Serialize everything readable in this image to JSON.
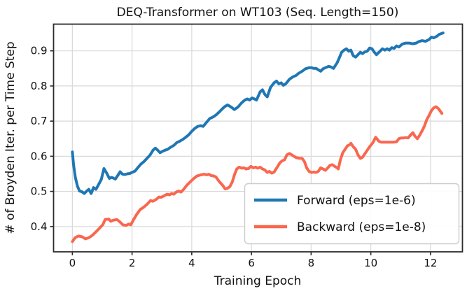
{
  "figure": {
    "background": "#ffffff",
    "frame_color": "#2b2b2b",
    "grid_color": "#d9d9d9",
    "text_color": "#111111",
    "legend_border_color": "#cccccc"
  },
  "chart_data": {
    "type": "line",
    "title": "DEQ-Transformer on WT103 (Seq. Length=150)",
    "xlabel": "Training Epoch",
    "ylabel": "# of Broyden Iter. per Time Step",
    "xlim": [
      -0.63,
      13.07
    ],
    "ylim": [
      0.328,
      0.976
    ],
    "x_ticks": [
      0,
      2,
      4,
      6,
      8,
      10,
      12
    ],
    "y_ticks": [
      0.4,
      0.5,
      0.6,
      0.7,
      0.8,
      0.9
    ],
    "grid": true,
    "legend_position": "lower right",
    "series": [
      {
        "name": "Forward (eps=1e-6)",
        "color": "#1f77b4",
        "x": [
          0,
          0.04,
          0.1,
          0.17,
          0.24,
          0.32,
          0.4,
          0.48,
          0.55,
          0.63,
          0.71,
          0.79,
          0.87,
          0.97,
          1.06,
          1.15,
          1.24,
          1.32,
          1.44,
          1.52,
          1.6,
          1.68,
          1.76,
          1.84,
          1.92,
          2.0,
          2.1,
          2.2,
          2.3,
          2.4,
          2.5,
          2.6,
          2.7,
          2.78,
          2.86,
          2.94,
          3.02,
          3.1,
          3.2,
          3.3,
          3.4,
          3.5,
          3.6,
          3.7,
          3.8,
          3.9,
          4.0,
          4.1,
          4.2,
          4.3,
          4.38,
          4.5,
          4.6,
          4.72,
          4.82,
          4.92,
          5.0,
          5.1,
          5.2,
          5.32,
          5.43,
          5.55,
          5.67,
          5.78,
          5.86,
          5.94,
          6.02,
          6.1,
          6.17,
          6.29,
          6.37,
          6.45,
          6.53,
          6.64,
          6.76,
          6.84,
          6.92,
          7.0,
          7.07,
          7.15,
          7.27,
          7.39,
          7.5,
          7.58,
          7.7,
          7.81,
          7.93,
          8.01,
          8.09,
          8.17,
          8.24,
          8.32,
          8.4,
          8.48,
          8.59,
          8.67,
          8.75,
          8.87,
          8.94,
          9.02,
          9.1,
          9.18,
          9.26,
          9.33,
          9.41,
          9.49,
          9.57,
          9.65,
          9.72,
          9.8,
          9.88,
          9.96,
          10.04,
          10.12,
          10.19,
          10.31,
          10.39,
          10.47,
          10.55,
          10.62,
          10.7,
          10.78,
          10.86,
          10.94,
          11.05,
          11.17,
          11.29,
          11.4,
          11.52,
          11.6,
          11.72,
          11.83,
          11.95,
          12.03,
          12.11,
          12.22,
          12.29,
          12.42
        ],
        "y": [
          0.612,
          0.575,
          0.54,
          0.515,
          0.501,
          0.499,
          0.494,
          0.501,
          0.506,
          0.494,
          0.511,
          0.506,
          0.518,
          0.534,
          0.565,
          0.552,
          0.537,
          0.54,
          0.535,
          0.545,
          0.556,
          0.549,
          0.548,
          0.55,
          0.551,
          0.554,
          0.558,
          0.568,
          0.578,
          0.585,
          0.594,
          0.603,
          0.617,
          0.623,
          0.617,
          0.61,
          0.614,
          0.617,
          0.62,
          0.626,
          0.631,
          0.639,
          0.643,
          0.648,
          0.654,
          0.661,
          0.671,
          0.679,
          0.685,
          0.687,
          0.685,
          0.697,
          0.707,
          0.712,
          0.718,
          0.726,
          0.733,
          0.741,
          0.746,
          0.74,
          0.733,
          0.74,
          0.752,
          0.76,
          0.763,
          0.76,
          0.766,
          0.763,
          0.76,
          0.783,
          0.789,
          0.776,
          0.769,
          0.796,
          0.809,
          0.814,
          0.806,
          0.809,
          0.802,
          0.806,
          0.819,
          0.826,
          0.83,
          0.836,
          0.842,
          0.849,
          0.852,
          0.852,
          0.85,
          0.85,
          0.846,
          0.842,
          0.849,
          0.852,
          0.856,
          0.854,
          0.85,
          0.866,
          0.879,
          0.896,
          0.902,
          0.906,
          0.899,
          0.902,
          0.886,
          0.882,
          0.889,
          0.896,
          0.892,
          0.897,
          0.899,
          0.908,
          0.906,
          0.896,
          0.889,
          0.899,
          0.906,
          0.902,
          0.906,
          0.902,
          0.909,
          0.907,
          0.914,
          0.911,
          0.919,
          0.922,
          0.922,
          0.92,
          0.922,
          0.926,
          0.929,
          0.927,
          0.932,
          0.939,
          0.937,
          0.942,
          0.947,
          0.951
        ]
      },
      {
        "name": "Backward (eps=1e-8)",
        "color": "#f9674e",
        "x": [
          0,
          0.09,
          0.2,
          0.32,
          0.44,
          0.55,
          0.67,
          0.79,
          0.91,
          1.02,
          1.1,
          1.22,
          1.29,
          1.37,
          1.49,
          1.57,
          1.69,
          1.8,
          1.88,
          1.96,
          2.04,
          2.15,
          2.27,
          2.39,
          2.51,
          2.62,
          2.7,
          2.82,
          2.9,
          2.97,
          3.09,
          3.17,
          3.25,
          3.33,
          3.4,
          3.48,
          3.56,
          3.64,
          3.72,
          3.83,
          3.95,
          4.07,
          4.18,
          4.3,
          4.42,
          4.5,
          4.57,
          4.65,
          4.73,
          4.81,
          4.92,
          5.04,
          5.12,
          5.2,
          5.28,
          5.36,
          5.43,
          5.51,
          5.59,
          5.67,
          5.75,
          5.82,
          5.9,
          5.98,
          6.06,
          6.14,
          6.21,
          6.29,
          6.37,
          6.45,
          6.53,
          6.6,
          6.68,
          6.76,
          6.88,
          6.95,
          7.03,
          7.11,
          7.19,
          7.27,
          7.35,
          7.5,
          7.62,
          7.7,
          7.78,
          7.85,
          7.93,
          8.01,
          8.09,
          8.17,
          8.24,
          8.32,
          8.4,
          8.48,
          8.56,
          8.63,
          8.71,
          8.79,
          8.87,
          8.91,
          8.98,
          9.06,
          9.14,
          9.22,
          9.3,
          9.33,
          9.41,
          9.49,
          9.57,
          9.65,
          9.72,
          9.8,
          9.88,
          9.96,
          10.08,
          10.16,
          10.27,
          10.35,
          10.43,
          10.58,
          10.74,
          10.86,
          10.94,
          11.01,
          11.09,
          11.17,
          11.25,
          11.33,
          11.41,
          11.48,
          11.56,
          11.64,
          11.72,
          11.8,
          11.87,
          11.95,
          12.03,
          12.11,
          12.18,
          12.26,
          12.38
        ],
        "y": [
          0.357,
          0.368,
          0.373,
          0.371,
          0.365,
          0.368,
          0.375,
          0.385,
          0.395,
          0.405,
          0.42,
          0.421,
          0.415,
          0.418,
          0.42,
          0.415,
          0.405,
          0.403,
          0.407,
          0.405,
          0.418,
          0.434,
          0.448,
          0.455,
          0.464,
          0.474,
          0.472,
          0.478,
          0.484,
          0.483,
          0.488,
          0.492,
          0.49,
          0.494,
          0.492,
          0.498,
          0.501,
          0.498,
          0.505,
          0.517,
          0.527,
          0.537,
          0.544,
          0.547,
          0.549,
          0.547,
          0.549,
          0.545,
          0.544,
          0.541,
          0.528,
          0.517,
          0.507,
          0.509,
          0.514,
          0.527,
          0.547,
          0.564,
          0.569,
          0.566,
          0.567,
          0.564,
          0.565,
          0.571,
          0.567,
          0.569,
          0.566,
          0.569,
          0.564,
          0.561,
          0.554,
          0.557,
          0.552,
          0.555,
          0.571,
          0.581,
          0.587,
          0.59,
          0.604,
          0.608,
          0.604,
          0.596,
          0.594,
          0.594,
          0.584,
          0.567,
          0.557,
          0.554,
          0.555,
          0.554,
          0.557,
          0.567,
          0.564,
          0.56,
          0.567,
          0.574,
          0.576,
          0.571,
          0.567,
          0.564,
          0.59,
          0.61,
          0.62,
          0.63,
          0.633,
          0.637,
          0.627,
          0.62,
          0.604,
          0.594,
          0.597,
          0.607,
          0.617,
          0.627,
          0.64,
          0.654,
          0.643,
          0.64,
          0.64,
          0.64,
          0.64,
          0.641,
          0.65,
          0.652,
          0.652,
          0.653,
          0.652,
          0.66,
          0.667,
          0.657,
          0.65,
          0.66,
          0.673,
          0.687,
          0.703,
          0.716,
          0.73,
          0.738,
          0.741,
          0.736,
          0.722
        ]
      }
    ]
  }
}
